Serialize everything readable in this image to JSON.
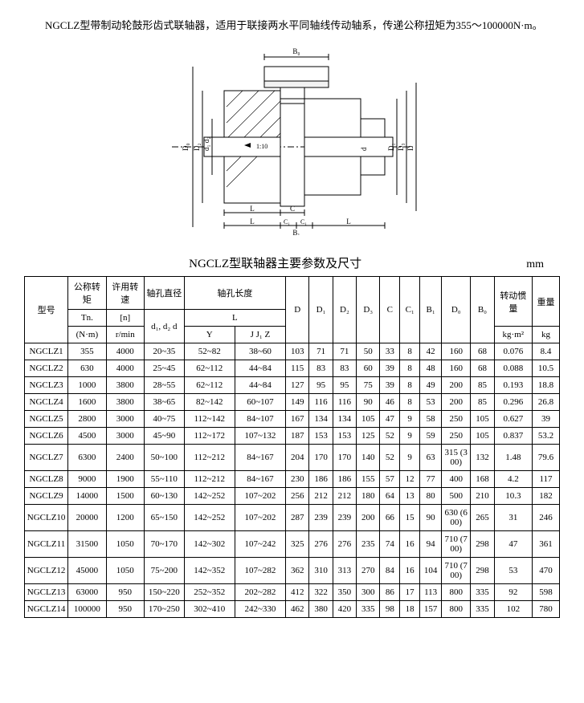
{
  "intro": "NGCLZ型带制动轮鼓形齿式联轴器，适用于联接两水平同轴线传动轴系，传递公称扭矩为355～100000N·m。",
  "diagram": {
    "labels": [
      "B₀",
      "D₀",
      "D₂",
      "d₁",
      "d₂",
      "D₁",
      "D",
      "D₃",
      "d",
      "1:10",
      "L",
      "C",
      "C₁",
      "L",
      "B₁",
      "L",
      "C"
    ],
    "stroke": "#000000",
    "fill": "#ffffff",
    "hatch": "#888888"
  },
  "table_title": "NGCLZ型联轴器主要参数及尺寸",
  "unit": "mm",
  "headers": {
    "model": "型号",
    "tn_label": "公称转矩",
    "tn_sym": "Tn.",
    "tn_unit": "(N·m)",
    "n_label": "许用转速",
    "n_sym": "[n]",
    "n_unit": "r/min",
    "bore_dia": "轴孔直径",
    "d1d2d": "d₁, d₂ d",
    "bore_len": "轴孔长度",
    "L": "L",
    "Y": "Y",
    "JJZ": "J J₁ Z",
    "D": "D",
    "D1": "D₁",
    "D2": "D₂",
    "D3": "D₃",
    "C": "C",
    "C1": "C₁",
    "B1": "B₁",
    "D0": "D₀",
    "B0": "B₀",
    "inertia": "转动惯量",
    "inertia_unit": "kg·m²",
    "mass": "重量",
    "mass_unit": "kg"
  },
  "rows": [
    {
      "model": "NGCLZ1",
      "tn": "355",
      "n": "4000",
      "d": "20~35",
      "y": "52~82",
      "j": "38~60",
      "D": "103",
      "D1": "71",
      "D2": "71",
      "D3": "50",
      "C": "33",
      "C1": "8",
      "B1": "42",
      "D0": "160",
      "B0": "68",
      "I": "0.076",
      "m": "8.4"
    },
    {
      "model": "NGCLZ2",
      "tn": "630",
      "n": "4000",
      "d": "25~45",
      "y": "62~112",
      "j": "44~84",
      "D": "115",
      "D1": "83",
      "D2": "83",
      "D3": "60",
      "C": "39",
      "C1": "8",
      "B1": "48",
      "D0": "160",
      "B0": "68",
      "I": "0.088",
      "m": "10.5"
    },
    {
      "model": "NGCLZ3",
      "tn": "1000",
      "n": "3800",
      "d": "28~55",
      "y": "62~112",
      "j": "44~84",
      "D": "127",
      "D1": "95",
      "D2": "95",
      "D3": "75",
      "C": "39",
      "C1": "8",
      "B1": "49",
      "D0": "200",
      "B0": "85",
      "I": "0.193",
      "m": "18.8"
    },
    {
      "model": "NGCLZ4",
      "tn": "1600",
      "n": "3800",
      "d": "38~65",
      "y": "82~142",
      "j": "60~107",
      "D": "149",
      "D1": "116",
      "D2": "116",
      "D3": "90",
      "C": "46",
      "C1": "8",
      "B1": "53",
      "D0": "200",
      "B0": "85",
      "I": "0.296",
      "m": "26.8"
    },
    {
      "model": "NGCLZ5",
      "tn": "2800",
      "n": "3000",
      "d": "40~75",
      "y": "112~142",
      "j": "84~107",
      "D": "167",
      "D1": "134",
      "D2": "134",
      "D3": "105",
      "C": "47",
      "C1": "9",
      "B1": "58",
      "D0": "250",
      "B0": "105",
      "I": "0.627",
      "m": "39"
    },
    {
      "model": "NGCLZ6",
      "tn": "4500",
      "n": "3000",
      "d": "45~90",
      "y": "112~172",
      "j": "107~132",
      "D": "187",
      "D1": "153",
      "D2": "153",
      "D3": "125",
      "C": "52",
      "C1": "9",
      "B1": "59",
      "D0": "250",
      "B0": "105",
      "I": "0.837",
      "m": "53.2"
    },
    {
      "model": "NGCLZ7",
      "tn": "6300",
      "n": "2400",
      "d": "50~100",
      "y": "112~212",
      "j": "84~167",
      "D": "204",
      "D1": "170",
      "D2": "170",
      "D3": "140",
      "C": "52",
      "C1": "9",
      "B1": "63",
      "D0": "315 (300)",
      "B0": "132",
      "I": "1.48",
      "m": "79.6"
    },
    {
      "model": "NGCLZ8",
      "tn": "9000",
      "n": "1900",
      "d": "55~110",
      "y": "112~212",
      "j": "84~167",
      "D": "230",
      "D1": "186",
      "D2": "186",
      "D3": "155",
      "C": "57",
      "C1": "12",
      "B1": "77",
      "D0": "400",
      "B0": "168",
      "I": "4.2",
      "m": "117"
    },
    {
      "model": "NGCLZ9",
      "tn": "14000",
      "n": "1500",
      "d": "60~130",
      "y": "142~252",
      "j": "107~202",
      "D": "256",
      "D1": "212",
      "D2": "212",
      "D3": "180",
      "C": "64",
      "C1": "13",
      "B1": "80",
      "D0": "500",
      "B0": "210",
      "I": "10.3",
      "m": "182"
    },
    {
      "model": "NGCLZ10",
      "tn": "20000",
      "n": "1200",
      "d": "65~150",
      "y": "142~252",
      "j": "107~202",
      "D": "287",
      "D1": "239",
      "D2": "239",
      "D3": "200",
      "C": "66",
      "C1": "15",
      "B1": "90",
      "D0": "630 (600)",
      "B0": "265",
      "I": "31",
      "m": "246"
    },
    {
      "model": "NGCLZ11",
      "tn": "31500",
      "n": "1050",
      "d": "70~170",
      "y": "142~302",
      "j": "107~242",
      "D": "325",
      "D1": "276",
      "D2": "276",
      "D3": "235",
      "C": "74",
      "C1": "16",
      "B1": "94",
      "D0": "710 (700)",
      "B0": "298",
      "I": "47",
      "m": "361"
    },
    {
      "model": "NGCLZ12",
      "tn": "45000",
      "n": "1050",
      "d": "75~200",
      "y": "142~352",
      "j": "107~282",
      "D": "362",
      "D1": "310",
      "D2": "313",
      "D3": "270",
      "C": "84",
      "C1": "16",
      "B1": "104",
      "D0": "710 (700)",
      "B0": "298",
      "I": "53",
      "m": "470"
    },
    {
      "model": "NGCLZ13",
      "tn": "63000",
      "n": "950",
      "d": "150~220",
      "y": "252~352",
      "j": "202~282",
      "D": "412",
      "D1": "322",
      "D2": "350",
      "D3": "300",
      "C": "86",
      "C1": "17",
      "B1": "113",
      "D0": "800",
      "B0": "335",
      "I": "92",
      "m": "598"
    },
    {
      "model": "NGCLZ14",
      "tn": "100000",
      "n": "950",
      "d": "170~250",
      "y": "302~410",
      "j": "242~330",
      "D": "462",
      "D1": "380",
      "D2": "420",
      "D3": "335",
      "C": "98",
      "C1": "18",
      "B1": "157",
      "D0": "800",
      "B0": "335",
      "I": "102",
      "m": "780"
    }
  ]
}
